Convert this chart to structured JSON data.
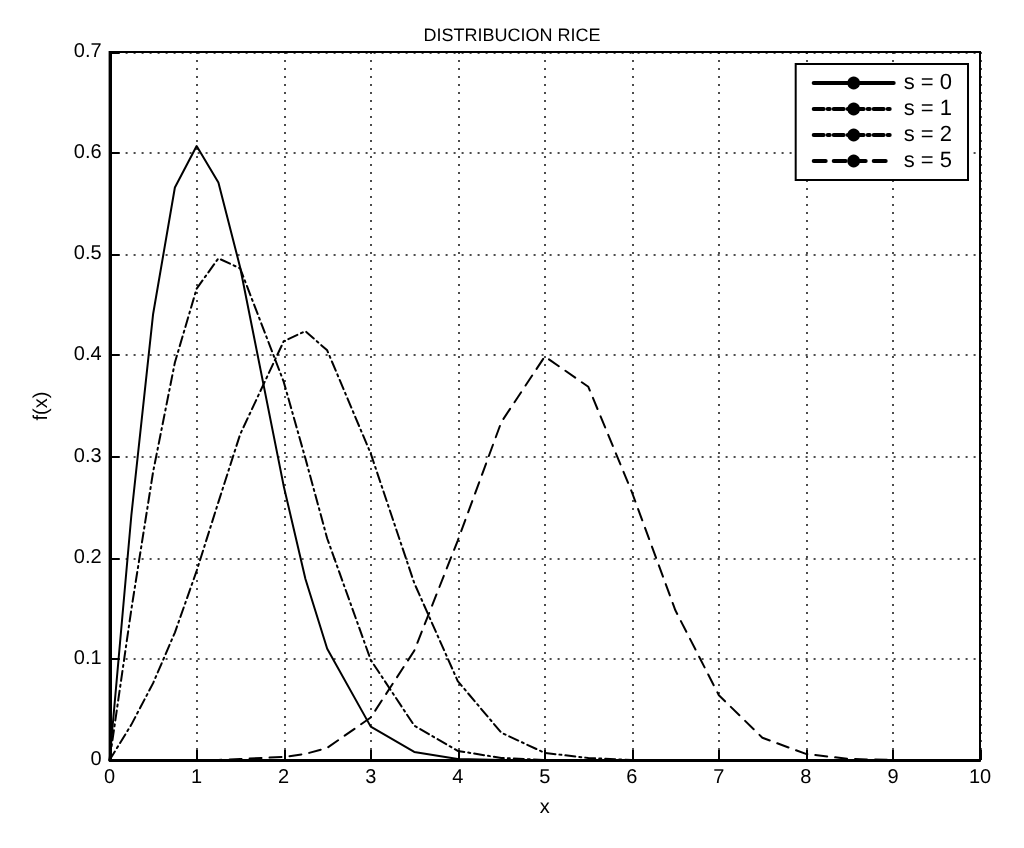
{
  "chart_data": {
    "type": "line",
    "title": "DISTRIBUCION RICE",
    "xlabel": "x",
    "ylabel": "f(x)",
    "x": [
      0,
      0.25,
      0.5,
      0.75,
      1,
      1.25,
      1.5,
      2,
      2.25,
      2.5,
      3,
      3.5,
      4,
      4.5,
      5,
      5.5,
      6,
      6.5,
      7,
      7.5,
      8,
      8.5,
      9,
      10
    ],
    "series": [
      {
        "name": "s = 0",
        "color": "#000000",
        "line_style": "solid",
        "values": [
          0,
          0.242,
          0.441,
          0.566,
          0.607,
          0.571,
          0.487,
          0.271,
          0.179,
          0.11,
          0.033,
          0.008,
          0.001,
          0,
          0,
          0,
          0,
          0,
          0,
          0,
          0,
          0,
          0,
          0
        ]
      },
      {
        "name": "s = 1",
        "color": "#000000",
        "line_style": "dotted",
        "values": [
          0,
          0.149,
          0.285,
          0.393,
          0.466,
          0.496,
          0.486,
          0.374,
          0.298,
          0.219,
          0.099,
          0.034,
          0.009,
          0.002,
          0,
          0,
          0,
          0,
          0,
          0,
          0,
          0,
          0,
          0
        ]
      },
      {
        "name": "s = 2",
        "color": "#000000",
        "line_style": "dotted",
        "values": [
          0,
          0.035,
          0.076,
          0.126,
          0.187,
          0.255,
          0.322,
          0.414,
          0.424,
          0.405,
          0.303,
          0.175,
          0.078,
          0.027,
          0.007,
          0.002,
          0,
          0,
          0,
          0,
          0,
          0,
          0,
          0
        ]
      },
      {
        "name": "s = 5",
        "color": "#000000",
        "line_style": "dashed",
        "values": [
          0,
          0,
          0,
          0,
          0,
          0,
          0.001,
          0.003,
          0.006,
          0.012,
          0.042,
          0.108,
          0.217,
          0.334,
          0.399,
          0.369,
          0.265,
          0.148,
          0.064,
          0.022,
          0.006,
          0.001,
          0,
          0
        ]
      }
    ],
    "xlim": [
      0,
      10
    ],
    "xticks": [
      0,
      1,
      2,
      3,
      4,
      5,
      6,
      7,
      8,
      9,
      10
    ],
    "ylim": [
      0,
      0.7
    ],
    "yticks": [
      0,
      0.1,
      0.2,
      0.3,
      0.4,
      0.5,
      0.6,
      0.7
    ],
    "grid": true,
    "legend": "top right",
    "marker": "none"
  }
}
